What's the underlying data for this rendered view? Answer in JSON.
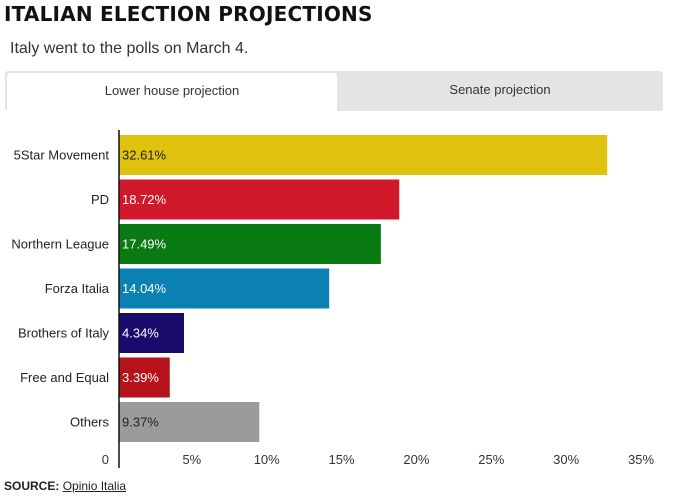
{
  "header": {
    "title": "ITALIAN ELECTION PROJECTIONS",
    "subtitle": "Italy went to the polls on March 4."
  },
  "tabs": [
    {
      "label": "Lower house projection",
      "active": true
    },
    {
      "label": "Senate projection",
      "active": false
    }
  ],
  "footer": {
    "source_label": "SOURCE:",
    "source_name": "Opinio Italia"
  },
  "chart_data": {
    "type": "bar",
    "orientation": "horizontal",
    "title": "ITALIAN ELECTION PROJECTIONS",
    "subtitle": "Italy went to the polls on March 4.",
    "xlabel": "",
    "ylabel": "",
    "xlim": [
      0,
      35
    ],
    "grid": false,
    "legend": "none",
    "categories": [
      "5Star Movement",
      "PD",
      "Northern League",
      "Forza Italia",
      "Brothers of Italy",
      "Free and Equal",
      "Others"
    ],
    "values": [
      32.61,
      18.72,
      17.49,
      14.04,
      4.34,
      3.39,
      9.37
    ],
    "value_labels": [
      "32.61%",
      "18.72%",
      "17.49%",
      "14.04%",
      "4.34%",
      "3.39%",
      "9.37%"
    ],
    "colors": [
      "#e0c30f",
      "#d0182a",
      "#0a7a12",
      "#0b80b3",
      "#1a0a6b",
      "#b5121b",
      "#9b9b9b"
    ],
    "label_colors": [
      "#222222",
      "#ffffff",
      "#ffffff",
      "#ffffff",
      "#ffffff",
      "#ffffff",
      "#222222"
    ],
    "ticks": [
      0,
      5,
      10,
      15,
      20,
      25,
      30,
      35
    ],
    "tick_labels": [
      "0",
      "5%",
      "10%",
      "15%",
      "20%",
      "25%",
      "30%",
      "35%"
    ]
  }
}
